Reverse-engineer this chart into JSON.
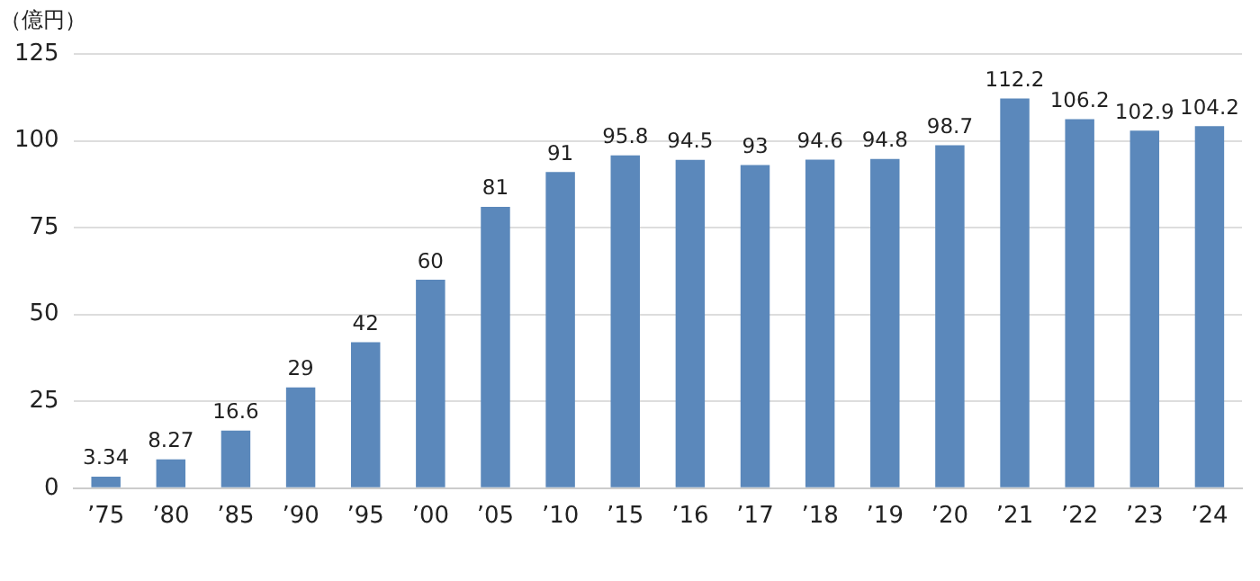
{
  "chart_data": {
    "type": "bar",
    "ylabel": "（億円）",
    "categories": [
      "’75",
      "’80",
      "’85",
      "’90",
      "’95",
      "’00",
      "’05",
      "’10",
      "’15",
      "’16",
      "’17",
      "’18",
      "’19",
      "’20",
      "’21",
      "’22",
      "’23",
      "’24"
    ],
    "values": [
      3.34,
      8.27,
      16.6,
      29,
      42,
      60,
      81,
      91,
      95.8,
      94.5,
      93,
      94.6,
      94.8,
      98.7,
      112.2,
      106.2,
      102.9,
      104.2
    ],
    "color": "#5b88bb",
    "ylim": [
      0,
      125
    ],
    "yticks": [
      0,
      25,
      50,
      75,
      100,
      125
    ],
    "grid": "y",
    "data_labels": true
  }
}
